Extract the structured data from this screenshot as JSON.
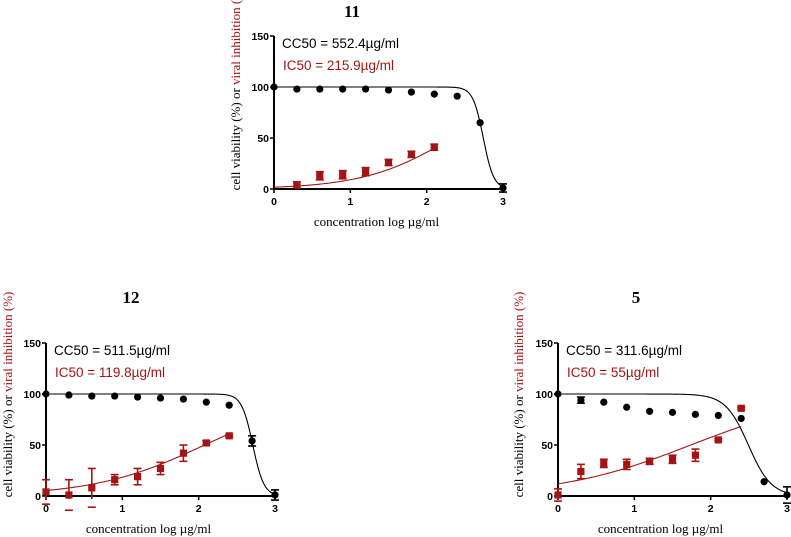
{
  "colors": {
    "viability": "#000000",
    "inhibition": "#a31515"
  },
  "chart_data": [
    {
      "type": "scatter",
      "title": "11",
      "xlabel": "concentration log µg/ml",
      "ylabel_part1": "cell viability (%) or ",
      "ylabel_part2": "viral inhibition (%)",
      "xlim": [
        0,
        3
      ],
      "ylim": [
        0,
        150
      ],
      "xticks": [
        "0",
        "1",
        "2",
        "3"
      ],
      "yticks": [
        "0",
        "50",
        "100",
        "150"
      ],
      "annotations": {
        "cc50": "CC50 = 552.4µg/ml",
        "ic50": "IC50 = 215.9µg/ml"
      },
      "series": [
        {
          "name": "cell viability",
          "marker": "circle",
          "x": [
            0,
            0.3,
            0.6,
            0.9,
            1.2,
            1.5,
            1.8,
            2.1,
            2.4,
            2.7,
            3
          ],
          "y": [
            100,
            98,
            98,
            98,
            98,
            97,
            95,
            93,
            91,
            65,
            1
          ],
          "err": [
            0,
            0,
            0,
            0,
            0,
            0,
            0,
            0,
            0,
            0,
            4
          ],
          "fit": {
            "log50": 2.742,
            "hill": 6.4,
            "direction": "down",
            "xrange": [
              0,
              3
            ]
          }
        },
        {
          "name": "viral inhibition",
          "marker": "square",
          "x": [
            0.3,
            0.6,
            0.9,
            1.2,
            1.5,
            1.8,
            2.1
          ],
          "y": [
            4,
            13,
            14,
            17,
            26,
            34,
            41
          ],
          "err": [
            3,
            4,
            4,
            4,
            3,
            3,
            3
          ],
          "fit": {
            "log50": 2.334,
            "hill": 0.75,
            "direction": "up",
            "xrange": [
              0,
              2.1
            ]
          }
        }
      ]
    },
    {
      "type": "scatter",
      "title": "12",
      "xlabel": "concentration log µg/ml",
      "ylabel_part1": "cell viability (%) or ",
      "ylabel_part2": "viral inhibition (%)",
      "xlim": [
        0,
        3
      ],
      "ylim": [
        0,
        150
      ],
      "xticks": [
        "0",
        "1",
        "2",
        "3"
      ],
      "yticks": [
        "0",
        "50",
        "100",
        "150"
      ],
      "annotations": {
        "cc50": "CC50 = 511.5µg/ml",
        "ic50": "IC50 = 119.8µg/ml"
      },
      "series": [
        {
          "name": "cell viability",
          "marker": "circle",
          "x": [
            0,
            0.3,
            0.6,
            0.9,
            1.2,
            1.5,
            1.8,
            2.1,
            2.4,
            2.7,
            3
          ],
          "y": [
            100,
            99,
            98,
            98,
            97,
            96,
            95,
            92,
            89,
            54,
            1
          ],
          "err": [
            0,
            0,
            0,
            0,
            0,
            0,
            0,
            0,
            0,
            5,
            5
          ],
          "fit": {
            "log50": 2.709,
            "hill": 6.0,
            "direction": "down",
            "xrange": [
              0,
              3
            ]
          }
        },
        {
          "name": "viral inhibition",
          "marker": "square",
          "x": [
            0,
            0.3,
            0.6,
            0.9,
            1.2,
            1.5,
            1.8,
            2.1,
            2.4
          ],
          "y": [
            4,
            1,
            8,
            16,
            19,
            27,
            42,
            52,
            59
          ],
          "err": [
            12,
            15,
            19,
            5,
            8,
            6,
            8,
            2,
            1
          ],
          "fit": {
            "log50": 2.078,
            "hill": 0.6,
            "direction": "up",
            "xrange": [
              0,
              2.4
            ]
          }
        }
      ]
    },
    {
      "type": "scatter",
      "title": "5",
      "xlabel": "concentration log µg/ml",
      "ylabel_part1": "cell viability (%) or ",
      "ylabel_part2": "viral inhibition (%)",
      "xlim": [
        0,
        3
      ],
      "ylim": [
        0,
        150
      ],
      "xticks": [
        "0",
        "1",
        "2",
        "3"
      ],
      "yticks": [
        "0",
        "50",
        "100",
        "150"
      ],
      "annotations": {
        "cc50": "CC50 = 311.6µg/ml",
        "ic50": "IC50 = 55µg/ml"
      },
      "series": [
        {
          "name": "cell viability",
          "marker": "circle",
          "x": [
            0,
            0.3,
            0.6,
            0.9,
            1.2,
            1.5,
            1.8,
            2.1,
            2.4,
            2.7,
            3
          ],
          "y": [
            100,
            94,
            92,
            87,
            83,
            82,
            80,
            79,
            76,
            14,
            1
          ],
          "err": [
            0,
            3,
            0,
            0,
            0,
            0,
            0,
            0,
            0,
            0,
            8
          ],
          "fit": {
            "log50": 2.494,
            "hill": 2.9,
            "direction": "down",
            "xrange": [
              0,
              3
            ]
          }
        },
        {
          "name": "viral inhibition",
          "marker": "square",
          "x": [
            0,
            0.3,
            0.6,
            0.9,
            1.2,
            1.5,
            1.8,
            2.1,
            2.4
          ],
          "y": [
            1,
            24,
            32,
            31,
            34,
            36,
            40,
            55,
            86
          ],
          "err": [
            6,
            7,
            4,
            5,
            3,
            4,
            6,
            1,
            1
          ],
          "fit": {
            "log50": 1.74,
            "hill": 0.5,
            "direction": "up",
            "xrange": [
              0,
              2.4
            ]
          }
        }
      ]
    }
  ]
}
